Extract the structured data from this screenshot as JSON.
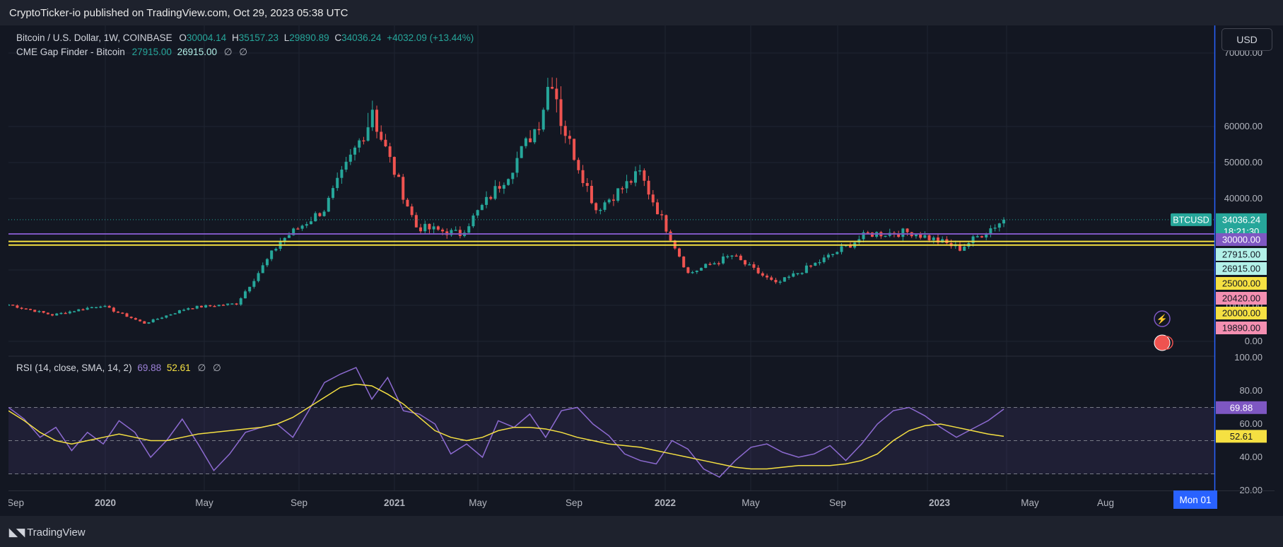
{
  "header": {
    "published": "CryptoTicker-io published on TradingView.com, Oct 29, 2023 05:38 UTC"
  },
  "legend": {
    "symbol": "Bitcoin / U.S. Dollar, 1W, COINBASE",
    "o_label": "O",
    "o": "30004.14",
    "h_label": "H",
    "h": "35157.23",
    "l_label": "L",
    "l": "29890.89",
    "c_label": "C",
    "c": "34036.24",
    "change": "+4032.09 (+13.44%)",
    "indicator": "CME Gap Finder - Bitcoin",
    "ind_v1": "27915.00",
    "ind_v2": "26915.00",
    "eye_icon": "∅",
    "settings_icon": "∅"
  },
  "rsi_legend": {
    "label": "RSI (14, close, SMA, 14, 2)",
    "rsi": "69.88",
    "sma": "52.61"
  },
  "currency_button": "USD",
  "footer": {
    "brand": "TradingView",
    "logo_icon": "tradingview-logo-icon"
  },
  "colors": {
    "up": "#26a69a",
    "down": "#ef5350",
    "background": "#131722",
    "resistance": "#7e57c2",
    "gap": "#f5e042",
    "rsi_line": "#7e57c2",
    "rsi_sma": "#f5e042"
  },
  "chart_data": [
    {
      "type": "candlestick",
      "title": "Bitcoin / U.S. Dollar, 1W, COINBASE",
      "x_ticks": [
        "Sep",
        "2020",
        "May",
        "Sep",
        "2021",
        "May",
        "Sep",
        "2022",
        "May",
        "Sep",
        "2023",
        "May",
        "Aug"
      ],
      "x_cursor_label": "Mon 01",
      "y_ticks": [
        "0.00",
        "10000.00",
        "20000.00",
        "30000.00",
        "40000.00",
        "50000.00",
        "60000.00",
        "70000.00"
      ],
      "ylim": [
        0,
        72000
      ],
      "scale": "log-like",
      "last_price": 34036.24,
      "price_label": "BTCUSD",
      "last_price_label": "34036.24",
      "countdown": "18:21:30",
      "horizontal_lines": [
        {
          "value": 30000,
          "label": "30000.00",
          "color": "#7e57c2"
        },
        {
          "value": 27915,
          "label": "27915.00",
          "color": "#f5e042"
        },
        {
          "value": 26915,
          "label": "26915.00",
          "color": "#f5e042"
        }
      ],
      "axis_labels": [
        {
          "value": 25000,
          "label": "25000.00",
          "color": "#f5e042",
          "text_color": "#131722"
        },
        {
          "value": 20420,
          "label": "20420.00",
          "color": "#f48fb1",
          "text_color": "#131722"
        },
        {
          "value": 20000,
          "label": "20000.00",
          "color": "#f5e042",
          "text_color": "#131722"
        },
        {
          "value": 19890,
          "label": "19890.00",
          "color": "#f48fb1",
          "text_color": "#131722"
        }
      ],
      "series": [
        {
          "name": "BTCUSD",
          "key_points": [
            [
              "2019-09",
              10200
            ],
            [
              "2019-12",
              7300
            ],
            [
              "2020-02",
              10000
            ],
            [
              "2020-03",
              5000
            ],
            [
              "2020-06",
              9300
            ],
            [
              "2020-09",
              10500
            ],
            [
              "2020-12",
              28000
            ],
            [
              "2021-01",
              37000
            ],
            [
              "2021-04",
              63000
            ],
            [
              "2021-06",
              32000
            ],
            [
              "2021-07",
              30000
            ],
            [
              "2021-09",
              47000
            ],
            [
              "2021-11",
              67500
            ],
            [
              "2022-01",
              37000
            ],
            [
              "2022-03",
              47000
            ],
            [
              "2022-06",
              19000
            ],
            [
              "2022-08",
              24000
            ],
            [
              "2022-11",
              16000
            ],
            [
              "2023-01",
              23000
            ],
            [
              "2023-04",
              30000
            ],
            [
              "2023-06",
              30500
            ],
            [
              "2023-09",
              26000
            ],
            [
              "2023-10",
              34036
            ]
          ]
        }
      ]
    },
    {
      "type": "line",
      "title": "RSI (14, close, SMA, 14, 2)",
      "ylim": [
        20,
        100
      ],
      "y_ticks": [
        "20.00",
        "40.00",
        "60.00",
        "80.00",
        "100.00"
      ],
      "bands": [
        70,
        50,
        30
      ],
      "series": [
        {
          "name": "RSI",
          "last": 69.88,
          "last_label": "69.88",
          "values": [
            70,
            63,
            52,
            58,
            44,
            55,
            48,
            62,
            55,
            40,
            50,
            63,
            48,
            32,
            42,
            55,
            58,
            60,
            52,
            68,
            85,
            90,
            94,
            75,
            88,
            68,
            66,
            60,
            42,
            48,
            40,
            62,
            58,
            66,
            52,
            68,
            70,
            60,
            53,
            42,
            38,
            36,
            50,
            45,
            33,
            28,
            38,
            46,
            48,
            43,
            40,
            42,
            47,
            38,
            48,
            60,
            68,
            70,
            65,
            58,
            52,
            57,
            62,
            69
          ]
        },
        {
          "name": "SMA",
          "last": 52.61,
          "last_label": "52.61",
          "values": [
            68,
            62,
            55,
            50,
            48,
            50,
            52,
            54,
            52,
            50,
            50,
            52,
            54,
            55,
            56,
            57,
            58,
            60,
            64,
            70,
            76,
            82,
            84,
            83,
            78,
            72,
            64,
            56,
            52,
            50,
            52,
            56,
            58,
            58,
            57,
            55,
            52,
            50,
            48,
            47,
            46,
            44,
            42,
            40,
            38,
            36,
            34,
            33,
            33,
            34,
            35,
            35,
            35,
            36,
            38,
            42,
            50,
            56,
            59,
            60,
            58,
            56,
            54,
            52.61
          ]
        }
      ]
    }
  ]
}
